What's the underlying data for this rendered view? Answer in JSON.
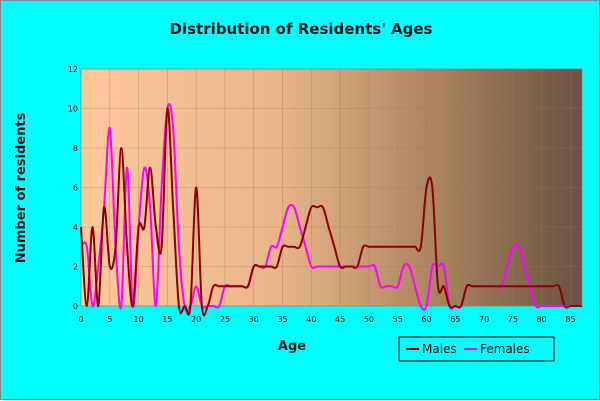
{
  "chart_data": {
    "type": "line",
    "title": "Distribution of Residents' Ages",
    "xlabel": "Age",
    "ylabel": "Number of residents",
    "xlim": [
      0,
      87
    ],
    "ylim": [
      0,
      12
    ],
    "x_ticks": [
      0,
      5,
      10,
      15,
      20,
      25,
      30,
      35,
      40,
      45,
      50,
      55,
      60,
      65,
      70,
      75,
      80,
      85
    ],
    "y_ticks": [
      0,
      2,
      4,
      6,
      8,
      10,
      12
    ],
    "grid": true,
    "legend_position": "bottom-right",
    "series": [
      {
        "name": "Males",
        "color": "#8b0000",
        "x": [
          0,
          1,
          2,
          3,
          4,
          5,
          6,
          7,
          8,
          9,
          10,
          11,
          12,
          13,
          14,
          15,
          16,
          17,
          18,
          19,
          20,
          21,
          22,
          23,
          24,
          25,
          26,
          27,
          28,
          29,
          30,
          31,
          32,
          33,
          34,
          35,
          36,
          37,
          38,
          39,
          40,
          41,
          42,
          43,
          44,
          45,
          46,
          47,
          48,
          49,
          50,
          51,
          52,
          53,
          54,
          55,
          56,
          57,
          58,
          59,
          60,
          61,
          62,
          63,
          64,
          65,
          66,
          67,
          68,
          69,
          70,
          71,
          72,
          73,
          74,
          75,
          76,
          77,
          78,
          79,
          80,
          81,
          82,
          83,
          84,
          85,
          86,
          87
        ],
        "values": [
          4,
          0,
          4,
          0,
          5,
          2,
          3,
          8,
          3,
          0,
          4,
          4,
          7,
          4,
          3,
          10,
          5,
          0,
          0,
          0,
          6,
          0,
          0,
          1,
          1,
          1,
          1,
          1,
          1,
          1,
          2,
          2,
          2,
          2,
          2,
          3,
          3,
          3,
          3,
          4,
          5,
          5,
          5,
          4,
          3,
          2,
          2,
          2,
          2,
          3,
          3,
          3,
          3,
          3,
          3,
          3,
          3,
          3,
          3,
          3,
          6,
          6,
          1,
          1,
          0,
          0,
          0,
          1,
          1,
          1,
          1,
          1,
          1,
          1,
          1,
          1,
          1,
          1,
          1,
          1,
          1,
          1,
          1,
          1,
          0,
          0,
          0,
          0
        ]
      },
      {
        "name": "Females",
        "color": "#ff00ff",
        "x": [
          0,
          1,
          2,
          3,
          4,
          5,
          6,
          7,
          8,
          9,
          10,
          11,
          12,
          13,
          14,
          15,
          16,
          17,
          18,
          19,
          20,
          21,
          22,
          23,
          24,
          25,
          26,
          27,
          28,
          29,
          30,
          31,
          32,
          33,
          34,
          35,
          36,
          37,
          38,
          39,
          40,
          41,
          42,
          43,
          44,
          45,
          46,
          47,
          48,
          49,
          50,
          51,
          52,
          53,
          54,
          55,
          56,
          57,
          58,
          59,
          60,
          61,
          62,
          63,
          64,
          65,
          66,
          67,
          68,
          69,
          70,
          71,
          72,
          73,
          74,
          75,
          76,
          77,
          78,
          79,
          80,
          81,
          82,
          83,
          84,
          85,
          86,
          87
        ],
        "values": [
          3,
          3,
          0,
          2,
          5,
          9,
          3,
          0,
          7,
          0,
          4,
          7,
          5,
          0,
          6,
          10,
          9,
          3,
          0,
          0,
          1,
          0,
          0,
          0,
          0,
          1,
          1,
          1,
          1,
          1,
          2,
          2,
          2,
          3,
          3,
          4,
          5,
          5,
          4,
          3,
          2,
          2,
          2,
          2,
          2,
          2,
          2,
          2,
          2,
          2,
          2,
          2,
          1,
          1,
          1,
          1,
          2,
          2,
          1,
          0,
          0,
          2,
          2,
          2,
          0,
          0,
          0,
          1,
          1,
          1,
          1,
          1,
          1,
          1,
          2,
          3,
          3,
          2,
          1,
          0,
          0,
          0,
          0,
          0,
          0,
          0,
          0,
          0
        ]
      }
    ]
  }
}
